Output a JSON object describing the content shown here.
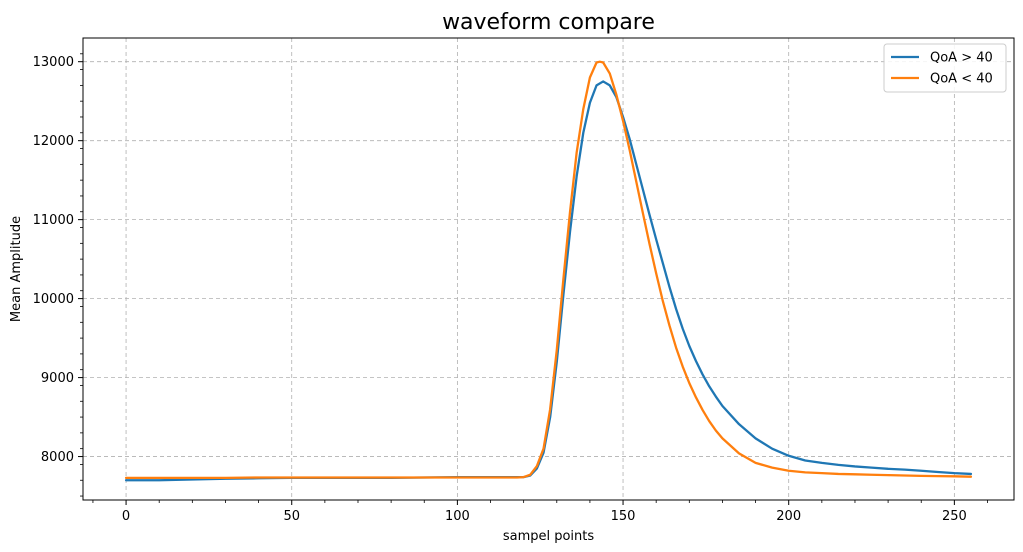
{
  "chart_data": {
    "type": "line",
    "title": "waveform compare",
    "xlabel": "sampel points",
    "ylabel": "Mean Amplitude",
    "xlim": [
      -13,
      268
    ],
    "ylim": [
      7450,
      13300
    ],
    "xticks": [
      0,
      50,
      100,
      150,
      200,
      250
    ],
    "yticks": [
      8000,
      9000,
      10000,
      11000,
      12000,
      13000
    ],
    "grid": true,
    "legend_position": "top-right",
    "series": [
      {
        "name": "QoA > 40",
        "color": "#1f77b4",
        "x": [
          0,
          10,
          20,
          30,
          40,
          50,
          60,
          70,
          80,
          90,
          100,
          110,
          118,
          120,
          122,
          124,
          126,
          128,
          130,
          132,
          134,
          136,
          138,
          140,
          142,
          144,
          146,
          148,
          150,
          152,
          154,
          156,
          158,
          160,
          162,
          164,
          166,
          168,
          170,
          172,
          174,
          176,
          178,
          180,
          185,
          190,
          195,
          200,
          205,
          210,
          215,
          220,
          225,
          230,
          235,
          240,
          245,
          250,
          255
        ],
        "values": [
          7700,
          7700,
          7710,
          7720,
          7725,
          7730,
          7730,
          7730,
          7730,
          7735,
          7740,
          7740,
          7740,
          7740,
          7760,
          7850,
          8050,
          8500,
          9200,
          10050,
          10850,
          11550,
          12100,
          12480,
          12700,
          12750,
          12700,
          12550,
          12300,
          12020,
          11700,
          11380,
          11060,
          10750,
          10450,
          10150,
          9870,
          9620,
          9400,
          9210,
          9040,
          8890,
          8760,
          8640,
          8410,
          8230,
          8100,
          8010,
          7950,
          7920,
          7895,
          7875,
          7860,
          7845,
          7835,
          7820,
          7805,
          7790,
          7780
        ]
      },
      {
        "name": "QoA < 40",
        "color": "#ff7f0e",
        "x": [
          0,
          10,
          20,
          30,
          40,
          50,
          60,
          70,
          80,
          90,
          100,
          110,
          118,
          120,
          122,
          124,
          126,
          128,
          130,
          132,
          134,
          136,
          138,
          140,
          142,
          143,
          144,
          146,
          148,
          150,
          152,
          154,
          156,
          158,
          160,
          162,
          164,
          166,
          168,
          170,
          172,
          174,
          176,
          178,
          180,
          185,
          190,
          195,
          200,
          205,
          210,
          215,
          220,
          225,
          230,
          235,
          240,
          245,
          250,
          255
        ],
        "values": [
          7730,
          7730,
          7730,
          7730,
          7735,
          7735,
          7735,
          7735,
          7735,
          7735,
          7735,
          7735,
          7735,
          7740,
          7770,
          7880,
          8100,
          8600,
          9350,
          10250,
          11100,
          11850,
          12400,
          12800,
          12990,
          13000,
          12990,
          12850,
          12580,
          12250,
          11880,
          11480,
          11080,
          10690,
          10320,
          9970,
          9660,
          9380,
          9140,
          8930,
          8750,
          8590,
          8450,
          8330,
          8230,
          8040,
          7920,
          7860,
          7820,
          7800,
          7790,
          7780,
          7775,
          7770,
          7765,
          7760,
          7755,
          7752,
          7750,
          7745
        ]
      }
    ]
  }
}
